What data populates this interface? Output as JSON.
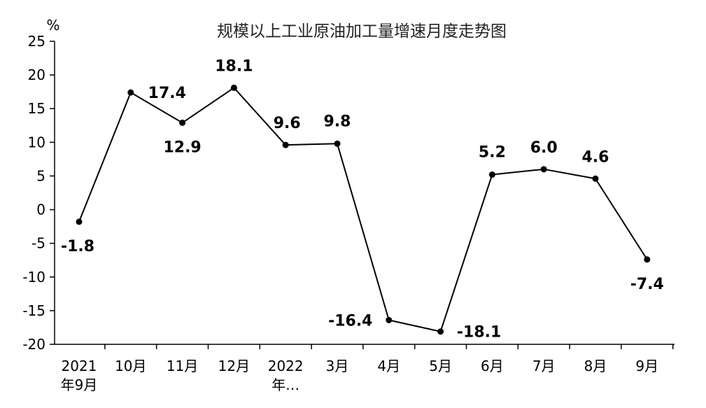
{
  "chart_data": {
    "type": "line",
    "title": "规模以上工业原油加工量增速月度走势图",
    "unit": "%",
    "categories": [
      {
        "line1": "2021",
        "line2": "年9月"
      },
      {
        "line1": "10月",
        "line2": ""
      },
      {
        "line1": "11月",
        "line2": ""
      },
      {
        "line1": "12月",
        "line2": ""
      },
      {
        "line1": "2022",
        "line2": "年…"
      },
      {
        "line1": "3月",
        "line2": ""
      },
      {
        "line1": "4月",
        "line2": ""
      },
      {
        "line1": "5月",
        "line2": ""
      },
      {
        "line1": "6月",
        "line2": ""
      },
      {
        "line1": "7月",
        "line2": ""
      },
      {
        "line1": "8月",
        "line2": ""
      },
      {
        "line1": "9月",
        "line2": ""
      }
    ],
    "values": [
      -1.8,
      17.4,
      12.9,
      18.1,
      9.6,
      9.8,
      -16.4,
      -18.1,
      5.2,
      6.0,
      4.6,
      -7.4
    ],
    "data_labels": [
      "-1.8",
      "17.4",
      "12.9",
      "18.1",
      "9.6",
      "9.8",
      "-16.4",
      "-18.1",
      "5.2",
      "6.0",
      "4.6",
      "-7.4"
    ],
    "ylim": [
      -20,
      25
    ],
    "yticks": [
      {
        "value": 25,
        "label": "25"
      },
      {
        "value": 20,
        "label": "20"
      },
      {
        "value": 15,
        "label": "15"
      },
      {
        "value": 10,
        "label": "10"
      },
      {
        "value": 5,
        "label": "5"
      },
      {
        "value": 0,
        "label": "0"
      },
      {
        "value": -5,
        "label": "-5"
      },
      {
        "value": -10,
        "label": "-10"
      },
      {
        "value": -15,
        "label": "-15"
      },
      {
        "value": -20,
        "label": "-20"
      }
    ],
    "grid": false,
    "legend": "none",
    "line_color": "#000000"
  }
}
